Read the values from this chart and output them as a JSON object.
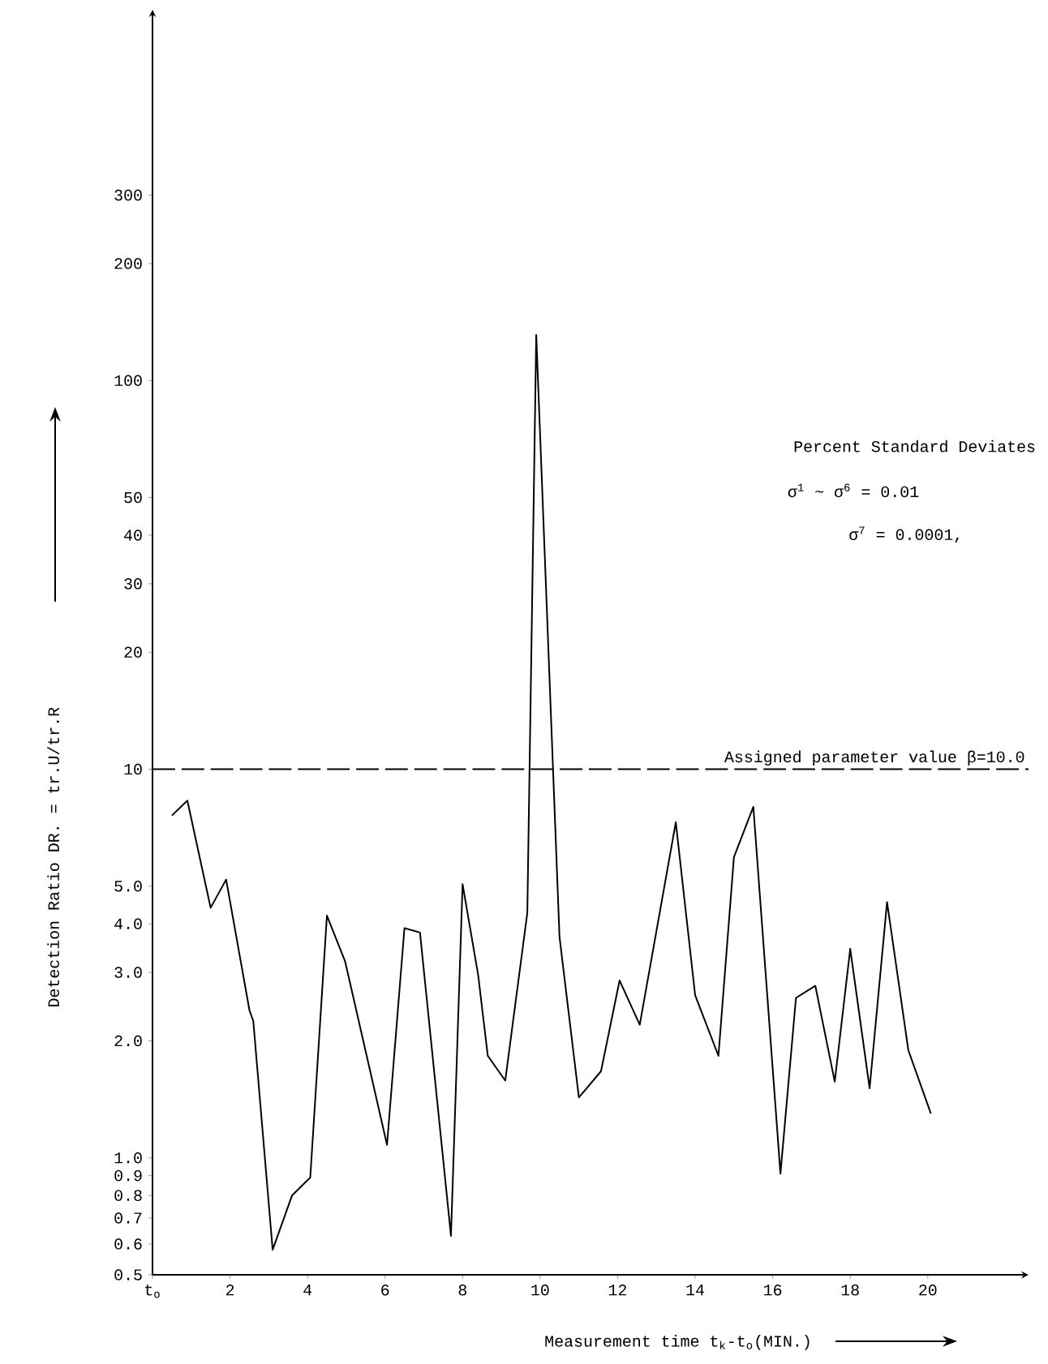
{
  "chart_data": {
    "type": "line",
    "xlabel": "Measurement time  t$_{k}$-t$_{o}$(MIN.)",
    "ylabel": "Detection Ratio DR. = tr.U/tr.R",
    "log": "y",
    "grid": false,
    "marker": "none",
    "line_style": "solid",
    "color": "#000000",
    "xlim": [
      0,
      22.6
    ],
    "ylim": [
      0.5,
      900
    ],
    "xticks": [
      {
        "value": 0,
        "label": "t$_{o}$"
      },
      2,
      4,
      6,
      8,
      10,
      12,
      14,
      16,
      18,
      20
    ],
    "yticks": [
      0.5,
      0.6,
      0.7,
      0.8,
      0.9,
      {
        "value": 1,
        "label": "1.0"
      },
      {
        "value": 2,
        "label": "2.0"
      },
      {
        "value": 3,
        "label": "3.0"
      },
      {
        "value": 4,
        "label": "4.0"
      },
      {
        "value": 5,
        "label": "5.0"
      },
      10,
      20,
      30,
      40,
      50,
      100,
      200,
      300
    ],
    "series": [
      {
        "color": "#000000",
        "x": [
          0.5,
          0.9,
          1.5,
          1.9,
          2.5,
          2.6,
          3.1,
          3.6,
          4.07,
          4.5,
          4.97,
          6.05,
          6.5,
          6.9,
          7.7,
          8.0,
          8.4,
          8.65,
          9.1,
          9.67,
          9.9,
          10.5,
          11.0,
          11.57,
          12.05,
          12.57,
          13.5,
          14.0,
          14.6,
          15.0,
          15.5,
          16.2,
          16.6,
          17.1,
          17.6,
          18.0,
          18.5,
          18.95,
          19.5,
          20.08
        ],
        "values": [
          7.6,
          8.3,
          4.4,
          5.2,
          2.4,
          2.25,
          0.58,
          0.8,
          0.89,
          4.2,
          3.2,
          1.08,
          3.9,
          3.8,
          0.63,
          5.06,
          2.96,
          1.83,
          1.58,
          4.27,
          131,
          3.7,
          1.43,
          1.67,
          2.86,
          2.2,
          7.3,
          2.62,
          1.83,
          5.94,
          8.0,
          0.91,
          2.58,
          2.77,
          1.57,
          3.45,
          1.51,
          4.55,
          1.89,
          1.3
        ]
      }
    ],
    "ref_lines": [
      {
        "axis": "y",
        "value": 10,
        "label": "Assigned parameter value  β=10.0",
        "line_style": "dashed",
        "color": "#000000"
      }
    ],
    "annotations": [
      "Percent Standard Deviates",
      "σ$^{1}$ ~ σ$^{6}$ = 0.01",
      "σ$^{7}$ = 0.0001,"
    ]
  }
}
